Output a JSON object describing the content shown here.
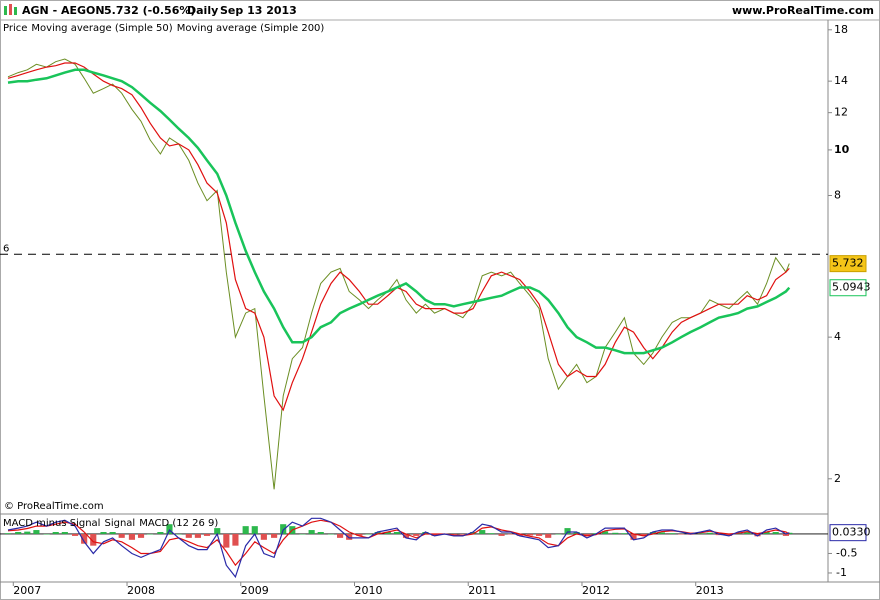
{
  "header": {
    "symbol": "AGN - AEGON",
    "quote": "5.732 (-0.56%)",
    "period": "Daily",
    "date": "Sep 13 2013",
    "site": "www.ProRealTime.com",
    "watermark": "© ProRealTime.com"
  },
  "chart_data": [
    {
      "type": "line",
      "log": true,
      "hline": 6,
      "x": [
        2006.83,
        2006.92,
        2007.0,
        2007.08,
        2007.17,
        2007.25,
        2007.33,
        2007.42,
        2007.5,
        2007.58,
        2007.67,
        2007.75,
        2007.83,
        2007.92,
        2008.0,
        2008.08,
        2008.17,
        2008.25,
        2008.33,
        2008.42,
        2008.5,
        2008.58,
        2008.67,
        2008.75,
        2008.83,
        2008.92,
        2009.0,
        2009.08,
        2009.17,
        2009.25,
        2009.33,
        2009.42,
        2009.5,
        2009.58,
        2009.67,
        2009.75,
        2009.83,
        2009.92,
        2010.0,
        2010.08,
        2010.17,
        2010.25,
        2010.33,
        2010.42,
        2010.5,
        2010.58,
        2010.67,
        2010.75,
        2010.83,
        2010.92,
        2011.0,
        2011.08,
        2011.17,
        2011.25,
        2011.33,
        2011.42,
        2011.5,
        2011.58,
        2011.67,
        2011.75,
        2011.83,
        2011.92,
        2012.0,
        2012.08,
        2012.17,
        2012.25,
        2012.33,
        2012.42,
        2012.5,
        2012.58,
        2012.67,
        2012.75,
        2012.83,
        2012.92,
        2013.0,
        2013.08,
        2013.17,
        2013.25,
        2013.33,
        2013.42,
        2013.5,
        2013.58,
        2013.67,
        2013.7
      ],
      "series": [
        {
          "name": "Price",
          "color": "#6b8e23",
          "label_color": "#000000",
          "values": [
            14.3,
            14.6,
            14.8,
            15.2,
            15.0,
            15.4,
            15.6,
            15.2,
            14.2,
            13.2,
            13.5,
            13.8,
            13.2,
            12.2,
            11.5,
            10.5,
            9.8,
            10.6,
            10.3,
            9.5,
            8.5,
            7.8,
            8.2,
            5.5,
            4.0,
            4.5,
            4.6,
            3.0,
            1.9,
            3.0,
            3.6,
            3.8,
            4.5,
            5.2,
            5.5,
            5.6,
            5.0,
            4.8,
            4.6,
            4.8,
            5.0,
            5.3,
            4.8,
            4.5,
            4.7,
            4.5,
            4.6,
            4.5,
            4.4,
            4.7,
            5.4,
            5.5,
            5.4,
            5.5,
            5.2,
            4.9,
            4.6,
            3.6,
            3.1,
            3.3,
            3.5,
            3.2,
            3.3,
            3.8,
            4.1,
            4.4,
            3.7,
            3.5,
            3.7,
            4.0,
            4.3,
            4.4,
            4.4,
            4.5,
            4.8,
            4.7,
            4.6,
            4.8,
            5.0,
            4.7,
            5.2,
            5.9,
            5.5,
            5.732
          ]
        },
        {
          "name": "Moving average (Simple 50)",
          "color": "#e01010",
          "values": [
            14.2,
            14.4,
            14.6,
            14.8,
            15.0,
            15.1,
            15.3,
            15.3,
            15.0,
            14.5,
            14.0,
            13.7,
            13.5,
            13.1,
            12.3,
            11.4,
            10.6,
            10.2,
            10.3,
            10.0,
            9.3,
            8.5,
            8.1,
            7.0,
            5.3,
            4.6,
            4.5,
            4.0,
            3.0,
            2.8,
            3.2,
            3.6,
            4.1,
            4.7,
            5.2,
            5.5,
            5.3,
            5.0,
            4.7,
            4.7,
            4.9,
            5.1,
            5.0,
            4.7,
            4.6,
            4.6,
            4.6,
            4.5,
            4.5,
            4.6,
            5.0,
            5.4,
            5.5,
            5.4,
            5.3,
            5.0,
            4.7,
            4.1,
            3.5,
            3.3,
            3.4,
            3.3,
            3.3,
            3.5,
            3.9,
            4.2,
            4.1,
            3.8,
            3.6,
            3.8,
            4.1,
            4.3,
            4.4,
            4.5,
            4.6,
            4.7,
            4.7,
            4.7,
            4.9,
            4.8,
            4.9,
            5.3,
            5.5,
            5.6
          ]
        },
        {
          "name": "Moving average (Simple 200)",
          "color": "#19c45a",
          "values": [
            13.9,
            14.0,
            14.0,
            14.1,
            14.2,
            14.4,
            14.6,
            14.8,
            14.8,
            14.6,
            14.4,
            14.2,
            14.0,
            13.6,
            13.1,
            12.6,
            12.1,
            11.6,
            11.1,
            10.6,
            10.1,
            9.5,
            8.9,
            8.0,
            7.0,
            6.1,
            5.5,
            5.0,
            4.6,
            4.2,
            3.9,
            3.9,
            4.0,
            4.2,
            4.3,
            4.5,
            4.6,
            4.7,
            4.8,
            4.9,
            5.0,
            5.1,
            5.2,
            5.0,
            4.8,
            4.7,
            4.7,
            4.65,
            4.7,
            4.75,
            4.8,
            4.85,
            4.9,
            5.0,
            5.1,
            5.1,
            5.0,
            4.8,
            4.5,
            4.2,
            4.0,
            3.9,
            3.8,
            3.8,
            3.75,
            3.7,
            3.7,
            3.7,
            3.75,
            3.8,
            3.9,
            4.0,
            4.1,
            4.2,
            4.3,
            4.4,
            4.45,
            4.5,
            4.6,
            4.65,
            4.75,
            4.85,
            5.0,
            5.0943
          ]
        }
      ],
      "ylim": [
        1.7,
        18.7
      ],
      "yticks": [
        2,
        4,
        8,
        10,
        12,
        14,
        18
      ],
      "xlim": [
        2006.76,
        2014.04
      ],
      "xticks": [
        2007,
        2008,
        2009,
        2010,
        2011,
        2012,
        2013
      ]
    },
    {
      "type": "macd",
      "x": [
        2006.83,
        2006.92,
        2007.0,
        2007.08,
        2007.17,
        2007.25,
        2007.33,
        2007.42,
        2007.5,
        2007.58,
        2007.67,
        2007.75,
        2007.83,
        2007.92,
        2008.0,
        2008.08,
        2008.17,
        2008.25,
        2008.33,
        2008.42,
        2008.5,
        2008.58,
        2008.67,
        2008.75,
        2008.83,
        2008.92,
        2009.0,
        2009.08,
        2009.17,
        2009.25,
        2009.33,
        2009.42,
        2009.5,
        2009.58,
        2009.67,
        2009.75,
        2009.83,
        2009.92,
        2010.0,
        2010.08,
        2010.17,
        2010.25,
        2010.33,
        2010.42,
        2010.5,
        2010.58,
        2010.67,
        2010.75,
        2010.83,
        2010.92,
        2011.0,
        2011.08,
        2011.17,
        2011.25,
        2011.33,
        2011.42,
        2011.5,
        2011.58,
        2011.67,
        2011.75,
        2011.83,
        2011.92,
        2012.0,
        2012.08,
        2012.17,
        2012.25,
        2012.33,
        2012.42,
        2012.5,
        2012.58,
        2012.67,
        2012.75,
        2012.83,
        2012.92,
        2013.0,
        2013.08,
        2013.17,
        2013.25,
        2013.33,
        2013.42,
        2013.5,
        2013.58,
        2013.67,
        2013.7
      ],
      "series": [
        {
          "name": "MACD minus Signal",
          "kind": "bars",
          "color": "#2db84d",
          "negative_color": "#e05050",
          "values": [
            0.02,
            0.05,
            0.06,
            0.1,
            0,
            0.05,
            0.05,
            -0.05,
            -0.25,
            -0.3,
            0.05,
            0.05,
            -0.1,
            -0.15,
            -0.1,
            0,
            0.05,
            0.25,
            0,
            -0.1,
            -0.1,
            -0.05,
            0.15,
            -0.35,
            -0.3,
            0.2,
            0.2,
            -0.15,
            -0.1,
            0.25,
            0.2,
            0,
            0.1,
            0.05,
            0,
            -0.1,
            -0.15,
            -0.05,
            0,
            0.05,
            0.05,
            0.05,
            -0.1,
            -0.05,
            0.05,
            -0.05,
            0,
            -0.02,
            -0.01,
            0.05,
            0.1,
            0.02,
            -0.05,
            -0.01,
            -0.05,
            -0.04,
            -0.05,
            -0.1,
            0,
            0.15,
            0.05,
            -0.05,
            0.02,
            0.07,
            0.03,
            0.02,
            -0.15,
            -0.05,
            0.05,
            0.04,
            0.02,
            -0.01,
            -0.02,
            0.02,
            0.03,
            -0.03,
            -0.05,
            0.03,
            0.04,
            -0.06,
            0.05,
            0.05,
            -0.05,
            0.03
          ]
        },
        {
          "name": "Signal",
          "kind": "line",
          "color": "#e01010",
          "values": [
            0.08,
            0.1,
            0.14,
            0.2,
            0.2,
            0.25,
            0.3,
            0.25,
            0.05,
            -0.2,
            -0.25,
            -0.15,
            -0.2,
            -0.35,
            -0.5,
            -0.5,
            -0.45,
            -0.15,
            -0.1,
            -0.2,
            -0.3,
            -0.35,
            -0.15,
            -0.45,
            -0.8,
            -0.5,
            -0.2,
            -0.35,
            -0.5,
            -0.15,
            0.1,
            0.2,
            0.3,
            0.35,
            0.3,
            0.2,
            0.05,
            -0.05,
            -0.1,
            0.0,
            0.05,
            0.1,
            0.0,
            -0.1,
            0.0,
            0.0,
            0.0,
            -0.03,
            -0.04,
            0.0,
            0.15,
            0.18,
            0.1,
            0.06,
            0.0,
            -0.06,
            -0.1,
            -0.25,
            -0.3,
            -0.1,
            0.0,
            -0.05,
            -0.02,
            0.08,
            0.12,
            0.13,
            0.0,
            -0.05,
            0.0,
            0.06,
            0.08,
            0.06,
            0.02,
            0.03,
            0.07,
            0.03,
            0.0,
            0.02,
            0.06,
            0.01,
            0.05,
            0.1,
            0.05,
            0.0
          ]
        },
        {
          "name": "MACD (12 26 9)",
          "kind": "line",
          "color": "#2a2aa8",
          "values": [
            0.1,
            0.15,
            0.2,
            0.3,
            0.2,
            0.3,
            0.35,
            0.2,
            -0.2,
            -0.5,
            -0.2,
            -0.1,
            -0.3,
            -0.5,
            -0.6,
            -0.5,
            -0.4,
            0.1,
            -0.1,
            -0.3,
            -0.4,
            -0.4,
            0.0,
            -0.8,
            -1.1,
            -0.3,
            0.0,
            -0.5,
            -0.6,
            0.1,
            0.3,
            0.2,
            0.4,
            0.4,
            0.3,
            0.1,
            -0.1,
            -0.1,
            -0.1,
            0.05,
            0.1,
            0.15,
            -0.1,
            -0.15,
            0.05,
            -0.05,
            0.0,
            -0.05,
            -0.05,
            0.05,
            0.25,
            0.2,
            0.05,
            0.05,
            -0.05,
            -0.1,
            -0.15,
            -0.35,
            -0.3,
            0.05,
            0.05,
            -0.1,
            0.0,
            0.15,
            0.15,
            0.15,
            -0.15,
            -0.1,
            0.05,
            0.1,
            0.1,
            0.05,
            0.0,
            0.05,
            0.1,
            0.0,
            -0.05,
            0.05,
            0.1,
            -0.05,
            0.1,
            0.15,
            0.0,
            0.033
          ]
        }
      ],
      "last_label": {
        "value": 0.033,
        "label": "0.0330"
      },
      "ylim": [
        -1.18,
        0.46
      ],
      "yticks": [
        {
          "value": -0.5,
          "label": "-0.5"
        },
        {
          "value": -1,
          "label": "-1"
        }
      ],
      "xlim": [
        2006.76,
        2014.04
      ]
    }
  ]
}
